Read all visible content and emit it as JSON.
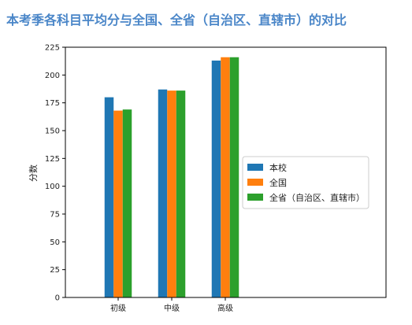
{
  "page_title": "本考季各科目平均分与全国、全省（自治区、直辖市）的对比",
  "chart_data": {
    "type": "bar",
    "title": "",
    "xlabel": "",
    "ylabel": "分数",
    "categories": [
      "初级",
      "中级",
      "高级"
    ],
    "series": [
      {
        "name": "本校",
        "color": "#1f77b4",
        "values": [
          180,
          187,
          213
        ]
      },
      {
        "name": "全国",
        "color": "#ff7f0e",
        "values": [
          168,
          186,
          216
        ]
      },
      {
        "name": "全省（自治区、直辖市）",
        "color": "#2ca02c",
        "values": [
          169,
          186,
          216
        ]
      }
    ],
    "ylim": [
      0,
      225
    ],
    "yticks": [
      0,
      25,
      50,
      75,
      100,
      125,
      150,
      175,
      200,
      225
    ],
    "grid": false,
    "legend_position": "center-right"
  }
}
